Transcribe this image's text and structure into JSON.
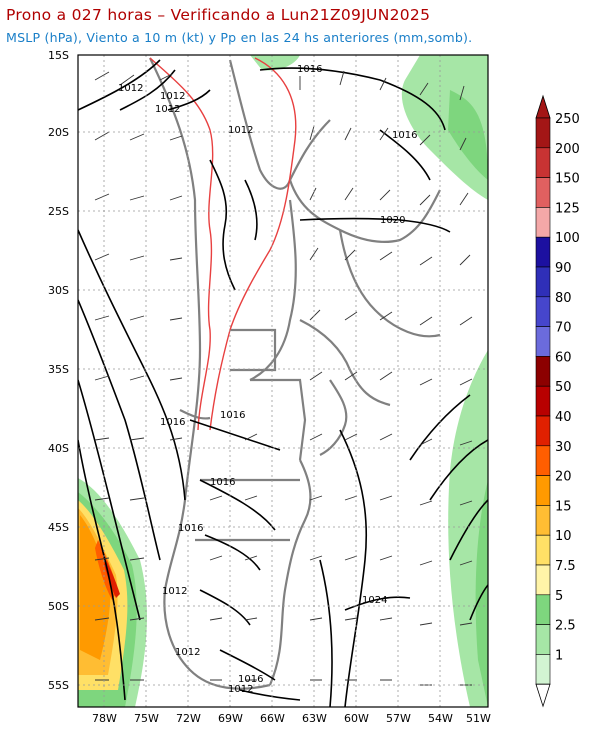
{
  "title": {
    "line1": "Prono a 027 horas – Verificando a Lun21Z09JUN2025",
    "line2": "MSLP (hPa), Viento a 10 m (kt) y Pp en las 24 hs anteriores (mm,somb)."
  },
  "colors": {
    "title_line1": "#b00000",
    "title_line2": "#1a7fc8",
    "isobar": "#000000",
    "border": "#808080",
    "terrain": "#e84040"
  },
  "lat_labels": [
    "15S",
    "20S",
    "25S",
    "30S",
    "35S",
    "40S",
    "45S",
    "50S",
    "55S"
  ],
  "lon_labels": [
    "78W",
    "75W",
    "72W",
    "69W",
    "66W",
    "63W",
    "60W",
    "57W",
    "54W",
    "51W"
  ],
  "isobar_labels": [
    "1012",
    "1012",
    "1012",
    "1012",
    "1016",
    "1016",
    "1020",
    "1016",
    "1016",
    "1016",
    "1016",
    "1012",
    "1024",
    "1016",
    "1012",
    "1012"
  ],
  "colorbar": {
    "values": [
      "250",
      "200",
      "150",
      "125",
      "100",
      "90",
      "80",
      "70",
      "60",
      "50",
      "40",
      "30",
      "20",
      "15",
      "10",
      "7.5",
      "5",
      "2.5",
      "1"
    ],
    "colors": [
      "#a31616",
      "#c83333",
      "#e06060",
      "#f4a8a8",
      "#1c10a0",
      "#2f2fb8",
      "#4646cc",
      "#6b6bdc",
      "#8c0000",
      "#b80000",
      "#e02000",
      "#ff5e00",
      "#ff9a00",
      "#ffbd33",
      "#ffe066",
      "#fff4a8",
      "#7ed67e",
      "#a6e6a6",
      "#d2f4d2"
    ]
  }
}
